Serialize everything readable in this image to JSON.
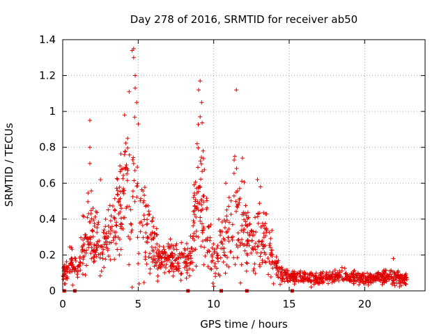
{
  "chart_data": {
    "type": "scatter",
    "title": "Day 278 of 2016, SRMTID for receiver ab50",
    "xlabel": "GPS time / hours",
    "ylabel": "SRMTID / TECUs",
    "xlim": [
      0,
      24
    ],
    "ylim": [
      0,
      1.4
    ],
    "grid": true,
    "marker": "+",
    "series_color": "#e00000",
    "x_ticks": [
      {
        "value": 0,
        "label": "0"
      },
      {
        "value": 5,
        "label": "5"
      },
      {
        "value": 10,
        "label": "10"
      },
      {
        "value": 15,
        "label": "15"
      },
      {
        "value": 20,
        "label": "20"
      }
    ],
    "y_ticks": [
      {
        "value": 0,
        "label": "0"
      },
      {
        "value": 0.2,
        "label": "0.2"
      },
      {
        "value": 0.4,
        "label": "0.4"
      },
      {
        "value": 0.6,
        "label": "0.6"
      },
      {
        "value": 0.8,
        "label": "0.8"
      },
      {
        "value": 1.0,
        "label": "1"
      },
      {
        "value": 1.2,
        "label": "1.2"
      },
      {
        "value": 1.4,
        "label": "1.4"
      }
    ],
    "zero_markers_x": [
      0.1,
      0.8,
      8.3,
      10.5,
      12.2,
      15.2
    ],
    "envelope": [
      {
        "x": 0.0,
        "base": 0.1,
        "spread": 0.05
      },
      {
        "x": 0.5,
        "base": 0.13,
        "spread": 0.08
      },
      {
        "x": 1.0,
        "base": 0.12,
        "spread": 0.06
      },
      {
        "x": 1.5,
        "base": 0.3,
        "spread": 0.18
      },
      {
        "x": 2.0,
        "base": 0.32,
        "spread": 0.2
      },
      {
        "x": 2.5,
        "base": 0.22,
        "spread": 0.12
      },
      {
        "x": 3.0,
        "base": 0.3,
        "spread": 0.14
      },
      {
        "x": 3.5,
        "base": 0.35,
        "spread": 0.18
      },
      {
        "x": 4.0,
        "base": 0.6,
        "spread": 0.3
      },
      {
        "x": 4.5,
        "base": 0.55,
        "spread": 0.35
      },
      {
        "x": 5.0,
        "base": 0.5,
        "spread": 0.3
      },
      {
        "x": 5.5,
        "base": 0.35,
        "spread": 0.2
      },
      {
        "x": 6.0,
        "base": 0.25,
        "spread": 0.12
      },
      {
        "x": 6.5,
        "base": 0.18,
        "spread": 0.08
      },
      {
        "x": 7.0,
        "base": 0.18,
        "spread": 0.08
      },
      {
        "x": 7.5,
        "base": 0.17,
        "spread": 0.08
      },
      {
        "x": 8.0,
        "base": 0.16,
        "spread": 0.07
      },
      {
        "x": 8.5,
        "base": 0.2,
        "spread": 0.1
      },
      {
        "x": 9.0,
        "base": 0.55,
        "spread": 0.3
      },
      {
        "x": 9.5,
        "base": 0.4,
        "spread": 0.25
      },
      {
        "x": 10.0,
        "base": 0.15,
        "spread": 0.1
      },
      {
        "x": 10.5,
        "base": 0.25,
        "spread": 0.15
      },
      {
        "x": 11.0,
        "base": 0.35,
        "spread": 0.18
      },
      {
        "x": 11.5,
        "base": 0.4,
        "spread": 0.22
      },
      {
        "x": 12.0,
        "base": 0.35,
        "spread": 0.2
      },
      {
        "x": 12.5,
        "base": 0.25,
        "spread": 0.12
      },
      {
        "x": 13.0,
        "base": 0.32,
        "spread": 0.15
      },
      {
        "x": 13.5,
        "base": 0.3,
        "spread": 0.14
      },
      {
        "x": 14.0,
        "base": 0.15,
        "spread": 0.08
      },
      {
        "x": 14.5,
        "base": 0.09,
        "spread": 0.04
      },
      {
        "x": 15.0,
        "base": 0.08,
        "spread": 0.03
      },
      {
        "x": 16.0,
        "base": 0.07,
        "spread": 0.03
      },
      {
        "x": 17.0,
        "base": 0.07,
        "spread": 0.03
      },
      {
        "x": 18.0,
        "base": 0.08,
        "spread": 0.03
      },
      {
        "x": 19.0,
        "base": 0.08,
        "spread": 0.03
      },
      {
        "x": 20.0,
        "base": 0.07,
        "spread": 0.03
      },
      {
        "x": 21.0,
        "base": 0.08,
        "spread": 0.03
      },
      {
        "x": 22.0,
        "base": 0.08,
        "spread": 0.04
      },
      {
        "x": 22.5,
        "base": 0.06,
        "spread": 0.03
      },
      {
        "x": 22.8,
        "base": 0.06,
        "spread": 0.03
      }
    ],
    "outliers": [
      {
        "x": 1.8,
        "y": 0.95
      },
      {
        "x": 1.8,
        "y": 0.8
      },
      {
        "x": 1.8,
        "y": 0.71
      },
      {
        "x": 4.1,
        "y": 0.98
      },
      {
        "x": 4.3,
        "y": 0.85
      },
      {
        "x": 4.6,
        "y": 1.34
      },
      {
        "x": 4.7,
        "y": 1.35
      },
      {
        "x": 4.7,
        "y": 1.3
      },
      {
        "x": 4.8,
        "y": 1.2
      },
      {
        "x": 4.8,
        "y": 1.13
      },
      {
        "x": 4.9,
        "y": 1.05
      },
      {
        "x": 4.4,
        "y": 1.11
      },
      {
        "x": 4.6,
        "y": 0.02
      },
      {
        "x": 9.1,
        "y": 1.17
      },
      {
        "x": 9.0,
        "y": 1.12
      },
      {
        "x": 9.2,
        "y": 1.05
      },
      {
        "x": 9.1,
        "y": 0.97
      },
      {
        "x": 8.9,
        "y": 0.82
      },
      {
        "x": 9.3,
        "y": 0.78
      },
      {
        "x": 11.5,
        "y": 1.12
      },
      {
        "x": 11.4,
        "y": 0.75
      },
      {
        "x": 11.9,
        "y": 0.74
      },
      {
        "x": 10.8,
        "y": 0.6
      },
      {
        "x": 12.9,
        "y": 0.62
      },
      {
        "x": 13.1,
        "y": 0.58
      },
      {
        "x": 2.5,
        "y": 0.62
      },
      {
        "x": 5.0,
        "y": 0.93
      },
      {
        "x": 21.9,
        "y": 0.18
      },
      {
        "x": 18.5,
        "y": 0.13
      }
    ]
  }
}
